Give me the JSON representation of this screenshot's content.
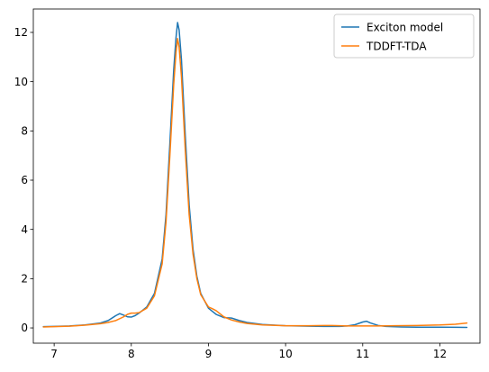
{
  "chart_data": {
    "type": "line",
    "title": "",
    "xlabel": "",
    "ylabel": "",
    "xlim": [
      6.73,
      12.52
    ],
    "ylim": [
      -0.62,
      12.95
    ],
    "xticks": [
      7,
      8,
      9,
      10,
      11,
      12
    ],
    "yticks": [
      0,
      2,
      4,
      6,
      8,
      10,
      12
    ],
    "grid": false,
    "legend": {
      "placement": "top-right"
    },
    "series": [
      {
        "name": "Exciton model",
        "color": "#1f77b4",
        "x": [
          6.86,
          7.0,
          7.2,
          7.4,
          7.6,
          7.7,
          7.8,
          7.85,
          7.9,
          7.95,
          8.0,
          8.05,
          8.1,
          8.2,
          8.3,
          8.4,
          8.45,
          8.5,
          8.55,
          8.58,
          8.6,
          8.62,
          8.65,
          8.7,
          8.75,
          8.8,
          8.85,
          8.9,
          9.0,
          9.1,
          9.2,
          9.3,
          9.4,
          9.5,
          9.7,
          10.0,
          10.3,
          10.5,
          10.7,
          10.8,
          10.9,
          11.0,
          11.05,
          11.1,
          11.2,
          11.3,
          11.5,
          11.7,
          12.0,
          12.35
        ],
        "y": [
          0.05,
          0.06,
          0.08,
          0.12,
          0.2,
          0.3,
          0.5,
          0.58,
          0.52,
          0.45,
          0.44,
          0.5,
          0.6,
          0.85,
          1.4,
          2.8,
          4.6,
          7.5,
          10.5,
          11.8,
          12.4,
          12.1,
          10.9,
          7.8,
          5.0,
          3.2,
          2.1,
          1.4,
          0.8,
          0.55,
          0.42,
          0.4,
          0.3,
          0.22,
          0.14,
          0.09,
          0.07,
          0.06,
          0.06,
          0.08,
          0.13,
          0.24,
          0.27,
          0.2,
          0.1,
          0.06,
          0.04,
          0.03,
          0.03,
          0.02
        ]
      },
      {
        "name": "TDDFT-TDA",
        "color": "#ff7f0e",
        "x": [
          6.86,
          7.0,
          7.2,
          7.4,
          7.6,
          7.7,
          7.8,
          7.9,
          7.95,
          8.0,
          8.05,
          8.1,
          8.2,
          8.3,
          8.4,
          8.45,
          8.5,
          8.55,
          8.58,
          8.6,
          8.62,
          8.65,
          8.7,
          8.75,
          8.8,
          8.85,
          8.9,
          9.0,
          9.05,
          9.1,
          9.2,
          9.3,
          9.4,
          9.5,
          9.7,
          10.0,
          10.3,
          10.5,
          10.6,
          10.8,
          11.0,
          11.2,
          11.4,
          11.7,
          12.0,
          12.2,
          12.35
        ],
        "y": [
          0.04,
          0.05,
          0.07,
          0.11,
          0.17,
          0.22,
          0.3,
          0.45,
          0.55,
          0.6,
          0.6,
          0.62,
          0.8,
          1.3,
          2.6,
          4.3,
          7.0,
          9.9,
          11.2,
          11.75,
          11.4,
          10.2,
          7.2,
          4.6,
          3.0,
          2.0,
          1.35,
          0.85,
          0.78,
          0.7,
          0.45,
          0.32,
          0.24,
          0.18,
          0.12,
          0.09,
          0.09,
          0.1,
          0.1,
          0.08,
          0.08,
          0.08,
          0.09,
          0.1,
          0.12,
          0.15,
          0.2
        ]
      }
    ]
  }
}
